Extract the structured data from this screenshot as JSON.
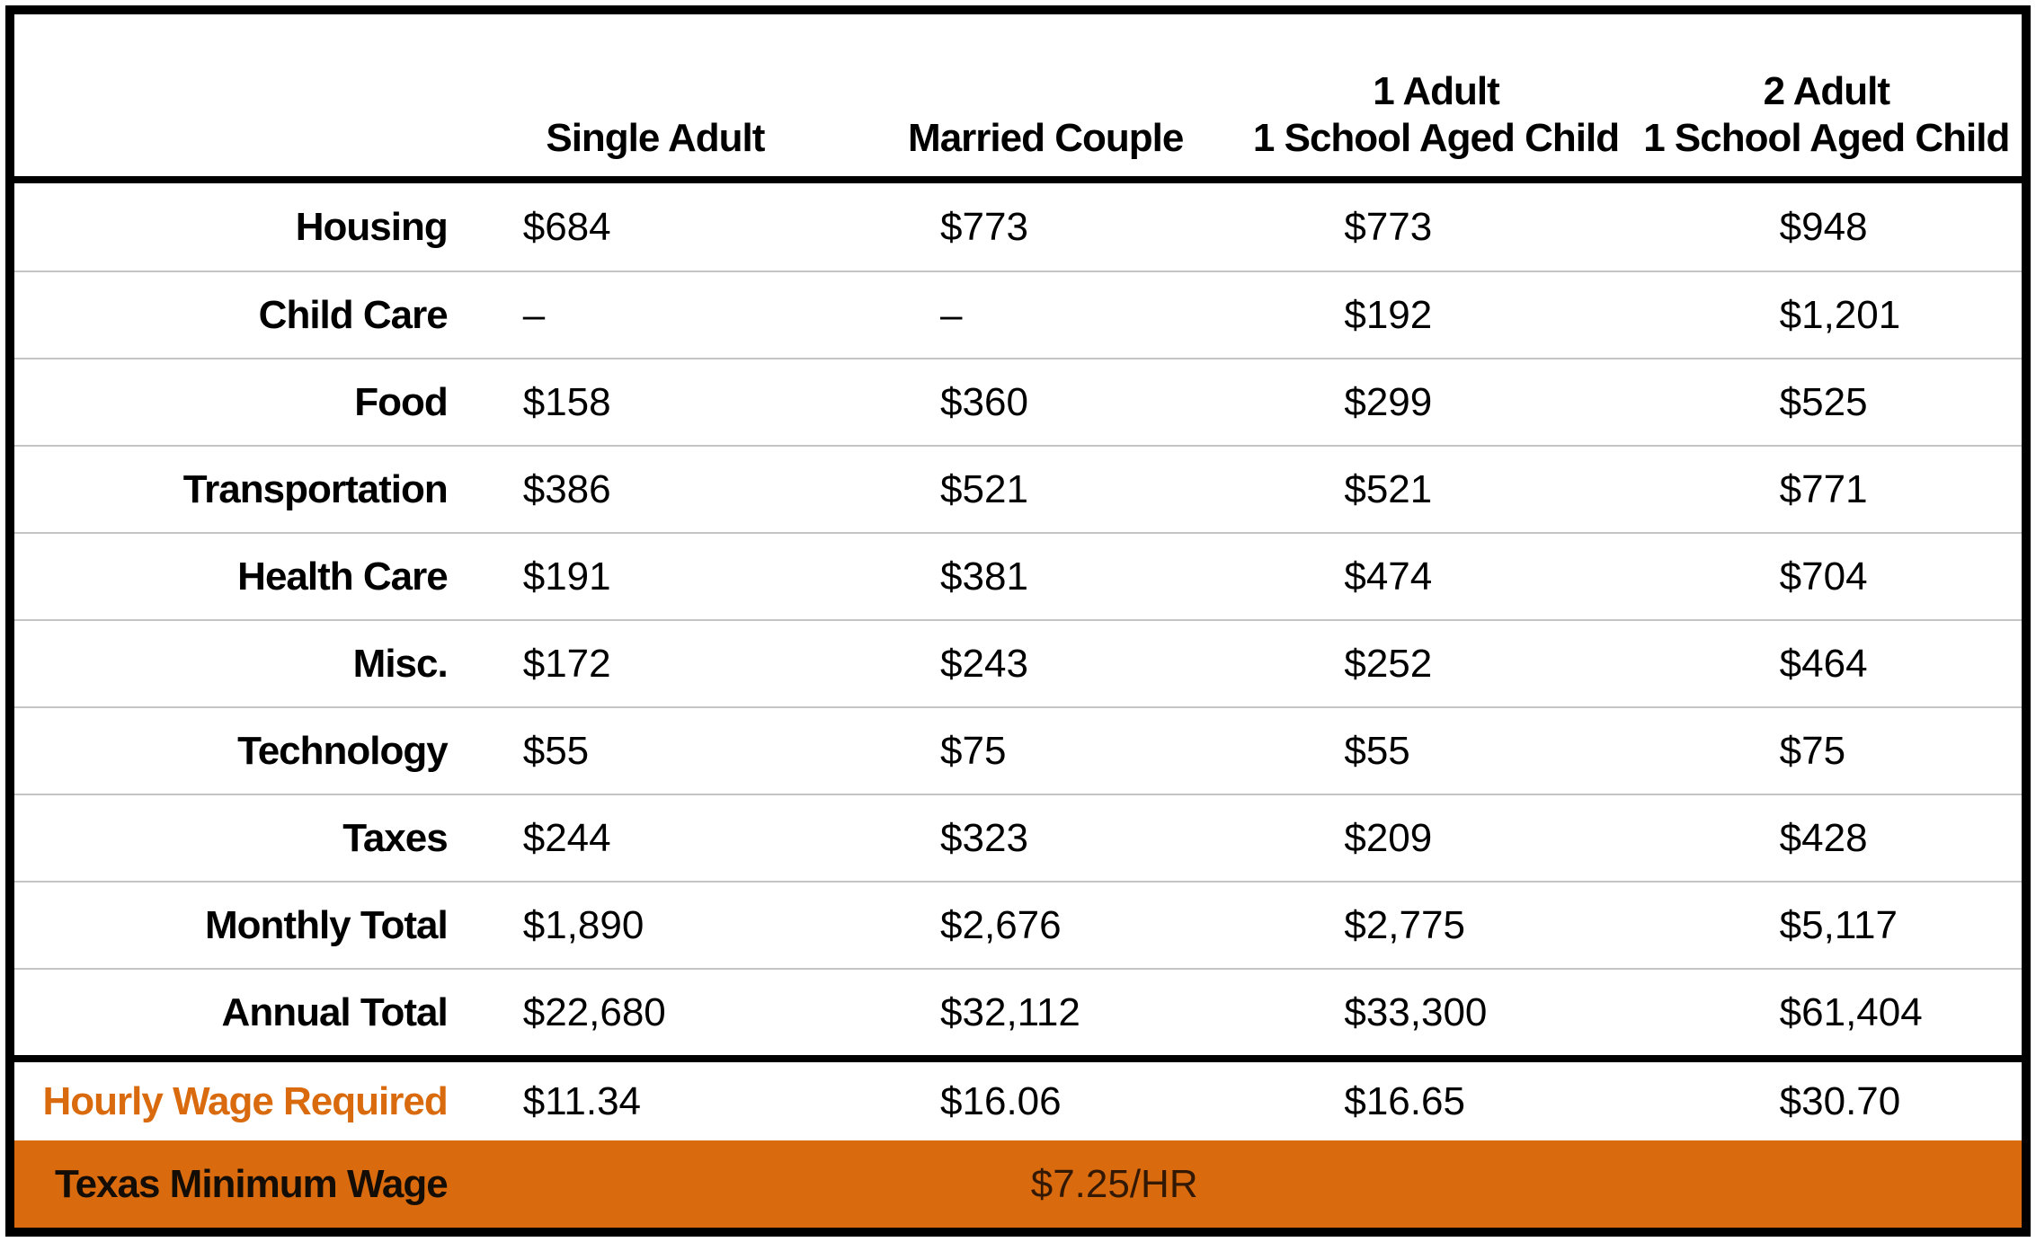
{
  "colors": {
    "orange": "#D96B0E",
    "row_divider": "#c4c4c4",
    "border": "#000000",
    "text": "#000000",
    "min_wage_text": "#331803"
  },
  "chart_data": {
    "type": "table",
    "columns": [
      {
        "line1": "",
        "line2": ""
      },
      {
        "line1": "",
        "line2": "Single Adult"
      },
      {
        "line1": "",
        "line2": "Married Couple"
      },
      {
        "line1": "1 Adult",
        "line2": "1 School Aged Child"
      },
      {
        "line1": "2 Adult",
        "line2": "1 School Aged Child"
      }
    ],
    "rows": [
      {
        "label": "Housing",
        "values": [
          "$684",
          "$773",
          "$773",
          "$948"
        ]
      },
      {
        "label": "Child Care",
        "values": [
          "–",
          "–",
          "$192",
          "$1,201"
        ]
      },
      {
        "label": "Food",
        "values": [
          "$158",
          "$360",
          "$299",
          "$525"
        ]
      },
      {
        "label": "Transportation",
        "values": [
          "$386",
          "$521",
          "$521",
          "$771"
        ]
      },
      {
        "label": "Health Care",
        "values": [
          "$191",
          "$381",
          "$474",
          "$704"
        ]
      },
      {
        "label": "Misc.",
        "values": [
          "$172",
          "$243",
          "$252",
          "$464"
        ]
      },
      {
        "label": "Technology",
        "values": [
          "$55",
          "$75",
          "$55",
          "$75"
        ]
      },
      {
        "label": "Taxes",
        "values": [
          "$244",
          "$323",
          "$209",
          "$428"
        ]
      },
      {
        "label": "Monthly Total",
        "values": [
          "$1,890",
          "$2,676",
          "$2,775",
          "$5,117"
        ]
      },
      {
        "label": "Annual Total",
        "values": [
          "$22,680",
          "$32,112",
          "$33,300",
          "$61,404"
        ]
      }
    ],
    "hourly_wage": {
      "label": "Hourly Wage Required",
      "values": [
        "$11.34",
        "$16.06",
        "$16.65",
        "$30.70"
      ]
    },
    "minimum_wage": {
      "label": "Texas Minimum Wage",
      "value": "$7.25/HR"
    }
  }
}
